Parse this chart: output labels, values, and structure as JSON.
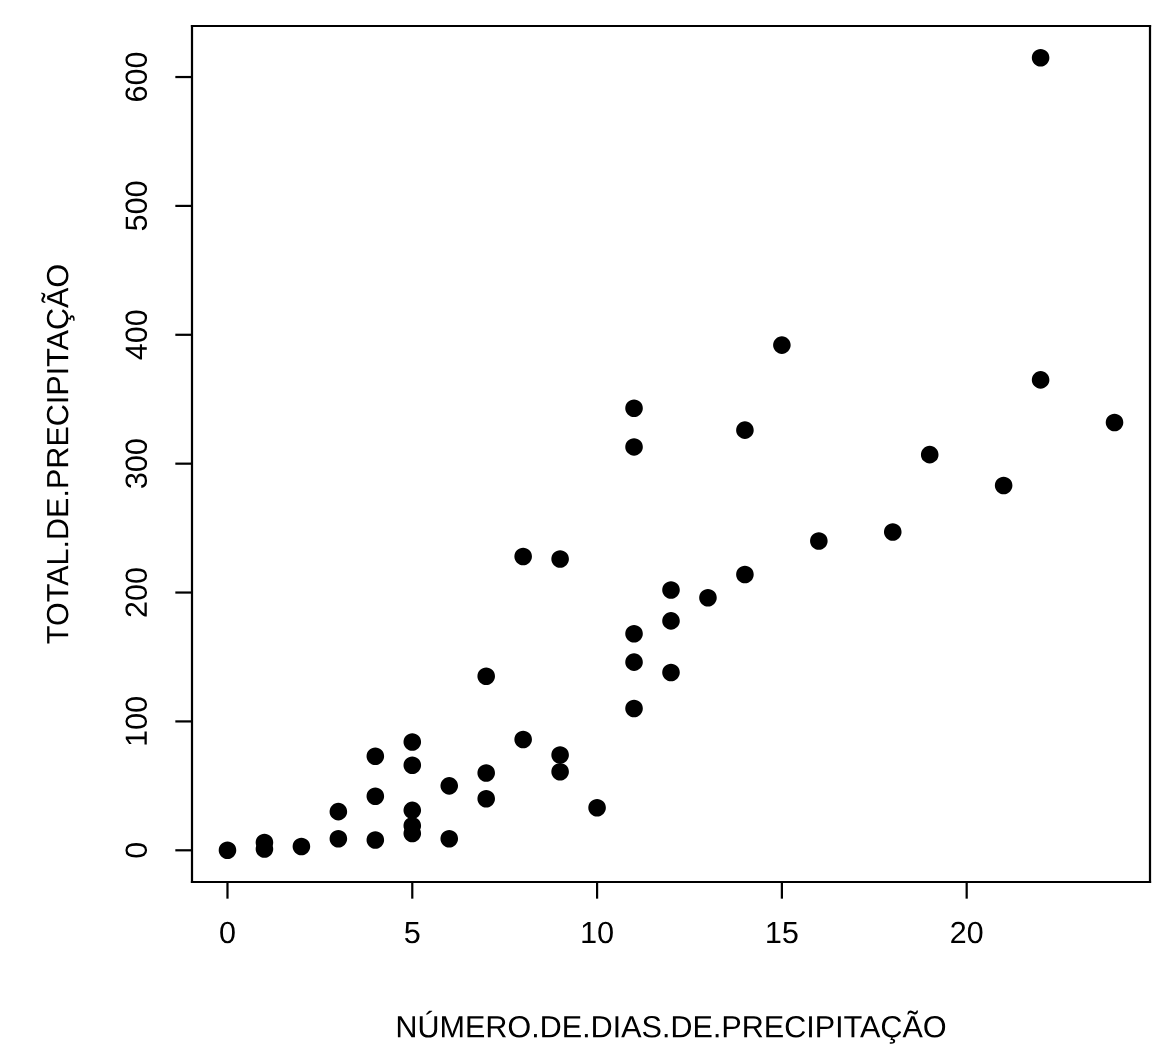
{
  "chart_data": {
    "type": "scatter",
    "xlabel": "NÚMERO.DE.DIAS.DE.PRECIPITAÇÃO",
    "ylabel": "TOTAL.DE.PRECIPITAÇÃO",
    "x": [
      22,
      15,
      11,
      11,
      14,
      22,
      24,
      19,
      21,
      16,
      18,
      8,
      9,
      12,
      13,
      14,
      11,
      12,
      11,
      12,
      11,
      7,
      8,
      9,
      9,
      10,
      5,
      5,
      4,
      4,
      3,
      3,
      4,
      5,
      5,
      5,
      6,
      6,
      7,
      7,
      0,
      1,
      1,
      2
    ],
    "values": [
      615,
      392,
      343,
      313,
      326,
      365,
      332,
      307,
      283,
      240,
      247,
      228,
      226,
      202,
      196,
      214,
      168,
      178,
      146,
      138,
      110,
      135,
      86,
      74,
      61,
      33,
      84,
      66,
      73,
      42,
      30,
      9,
      8,
      31,
      19,
      13,
      50,
      9,
      60,
      40,
      0,
      6,
      1,
      3
    ],
    "color": "#000000",
    "marker": "circle",
    "xlim": [
      -0.96,
      24.96
    ],
    "ylim": [
      -24.6,
      639.6
    ],
    "xticks": [
      0,
      5,
      10,
      15,
      20
    ],
    "yticks": [
      0,
      100,
      200,
      300,
      400,
      500,
      600
    ],
    "grid": false
  }
}
